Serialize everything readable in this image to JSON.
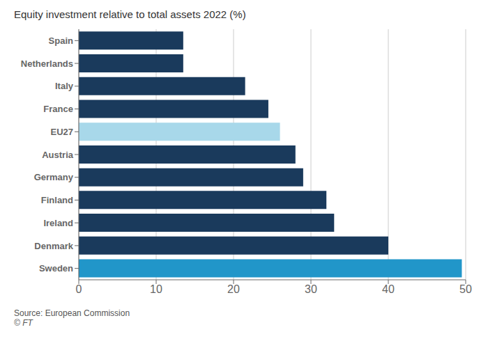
{
  "chart_data": {
    "type": "bar",
    "orientation": "horizontal",
    "title": "Equity investment relative to total assets 2022 (%)",
    "categories": [
      "Sweden",
      "Denmark",
      "Ireland",
      "Finland",
      "Germany",
      "Austria",
      "EU27",
      "France",
      "Italy",
      "Netherlands",
      "Spain"
    ],
    "values": [
      49.5,
      40.0,
      33.0,
      32.0,
      29.0,
      28.0,
      26.0,
      24.5,
      21.5,
      13.5,
      13.5
    ],
    "colors": [
      "#2196c9",
      "#1a3a5c",
      "#1a3a5c",
      "#1a3a5c",
      "#1a3a5c",
      "#1a3a5c",
      "#a8d8ea",
      "#1a3a5c",
      "#1a3a5c",
      "#1a3a5c",
      "#1a3a5c"
    ],
    "xlim": [
      0,
      50
    ],
    "xticks": [
      0,
      10,
      20,
      30,
      40,
      50
    ],
    "grid": true,
    "annotations": [
      "Source: European Commission",
      "© FT"
    ]
  }
}
